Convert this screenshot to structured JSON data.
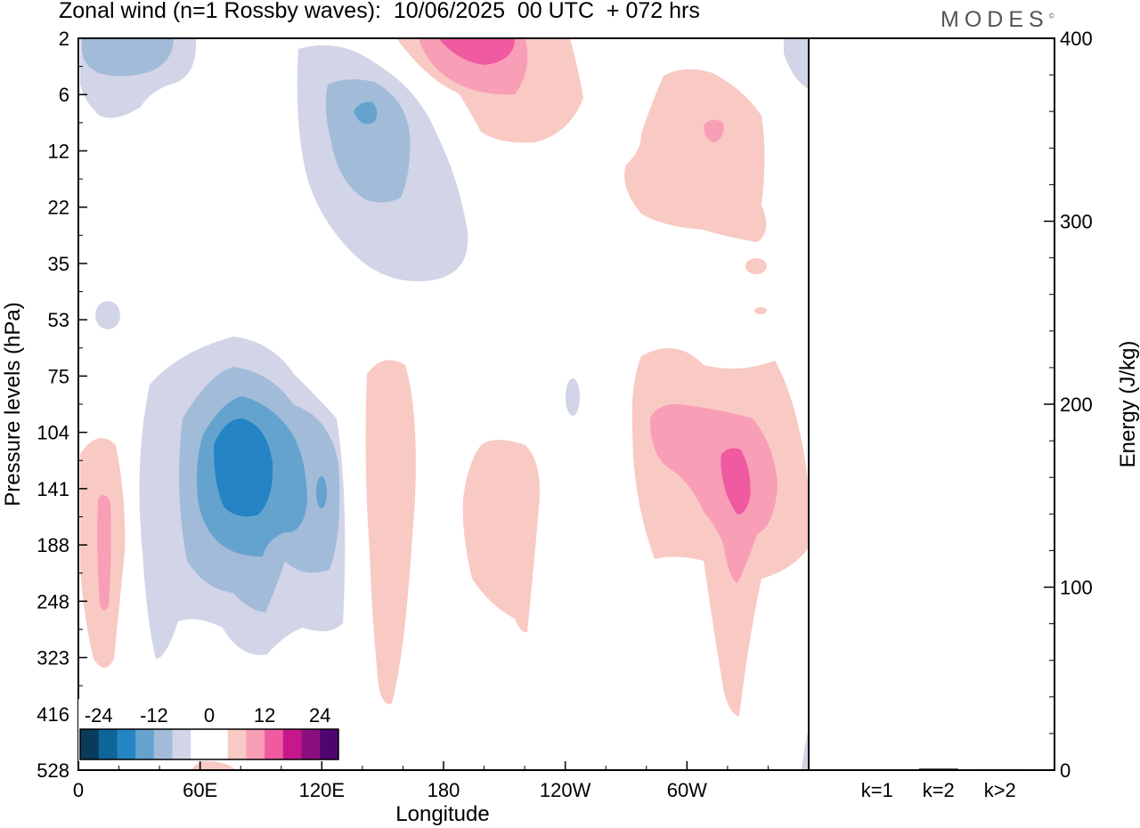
{
  "header": {
    "title": "Zonal wind (n=1 Rossby waves):  10/06/2025  00 UTC  + 072 hrs",
    "logo": "MODES",
    "logo_mark": "©"
  },
  "chart_data": [
    {
      "type": "contour",
      "xlabel": "Longitude",
      "ylabel": "Pressure levels (hPa)",
      "x_ticks": [
        "0",
        "60E",
        "120E",
        "180",
        "120W",
        "60W"
      ],
      "y_ticks": [
        "2",
        "6",
        "12",
        "22",
        "35",
        "53",
        "75",
        "104",
        "141",
        "188",
        "248",
        "323",
        "416",
        "528"
      ],
      "colorbar": {
        "labels": [
          "-24",
          "-12",
          "0",
          "12",
          "24"
        ],
        "colors": [
          "#0b3b5a",
          "#0e6598",
          "#2484c4",
          "#65a3cf",
          "#a2bbd9",
          "#d2d4e8",
          "#ffffff",
          "#ffffff",
          "#f9c9c4",
          "#f89eb6",
          "#ef5aa0",
          "#c8178c",
          "#8c0f80",
          "#4f0570"
        ]
      },
      "regions": [
        {
          "sign": "negative",
          "level": 1,
          "x_center_lon": 20,
          "y_center_level": "2"
        },
        {
          "sign": "negative",
          "level": 2,
          "x_center_lon": 130,
          "y_center_level": "12"
        },
        {
          "sign": "negative",
          "level": 4,
          "x_center_lon": 78,
          "y_center_level": "141"
        },
        {
          "sign": "positive",
          "level": 3,
          "x_center_lon": 195,
          "y_center_level": "2"
        },
        {
          "sign": "positive",
          "level": 2,
          "x_center_lon": 315,
          "y_center_level": "12"
        },
        {
          "sign": "positive",
          "level": 3,
          "x_center_lon": 325,
          "y_center_level": "141"
        },
        {
          "sign": "positive",
          "level": 1,
          "x_center_lon": 205,
          "y_center_level": "188"
        },
        {
          "sign": "positive",
          "level": 1,
          "x_center_lon": 152,
          "y_center_level": "188"
        },
        {
          "sign": "positive",
          "level": 2,
          "x_center_lon": 12,
          "y_center_level": "188"
        }
      ]
    },
    {
      "type": "bar",
      "categories": [
        "k=1",
        "k=2",
        "k>2"
      ],
      "values": [
        0.4,
        0.8,
        0.5
      ],
      "ylabel": "Energy (J/kg)",
      "y_ticks": [
        "0",
        "100",
        "200",
        "300",
        "400"
      ],
      "ylim": [
        0,
        400
      ]
    }
  ]
}
